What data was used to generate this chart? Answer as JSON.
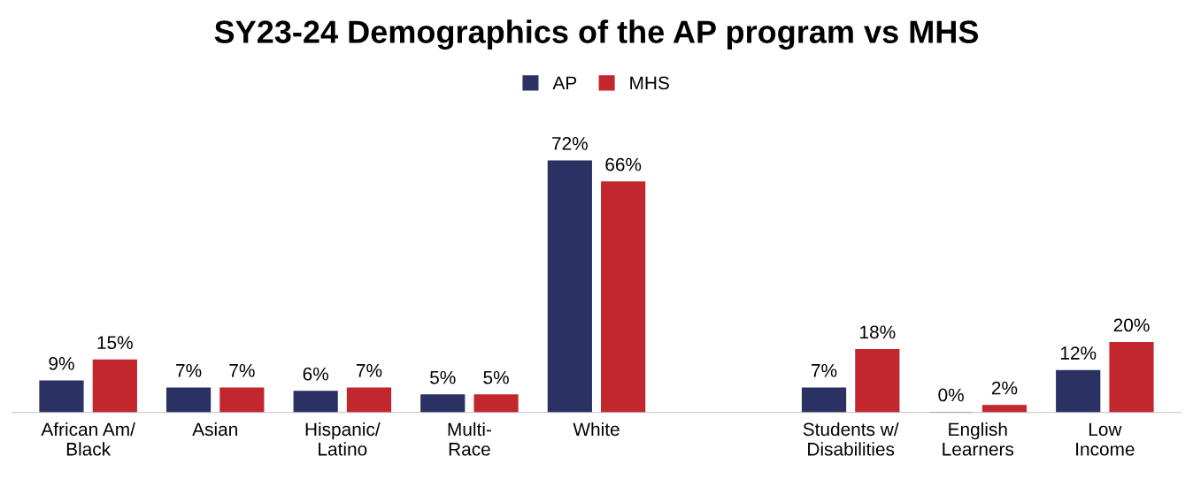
{
  "chart_data": {
    "type": "bar",
    "title": "SY23-24 Demographics of the AP program vs MHS",
    "categories": [
      "African Am/\nBlack",
      "Asian",
      "Hispanic/\nLatino",
      "Multi-\nRace",
      "White",
      null,
      "Students w/\nDisabilities",
      "English\nLearners",
      "Low\nIncome"
    ],
    "series": [
      {
        "name": "AP",
        "color": "#2b3163",
        "values": [
          9,
          7,
          6,
          5,
          72,
          null,
          7,
          0,
          12
        ],
        "value_labels": [
          "9%",
          "7%",
          "6%",
          "5%",
          "72%",
          null,
          "7%",
          "0%",
          "12%"
        ]
      },
      {
        "name": "MHS",
        "color": "#c1272d",
        "values": [
          15,
          7,
          7,
          5,
          66,
          null,
          18,
          2,
          20
        ],
        "value_labels": [
          "15%",
          "7%",
          "7%",
          "5%",
          "66%",
          null,
          "18%",
          "2%",
          "20%"
        ]
      }
    ],
    "legend": "top",
    "tick_labels": "x",
    "grid": false
  }
}
